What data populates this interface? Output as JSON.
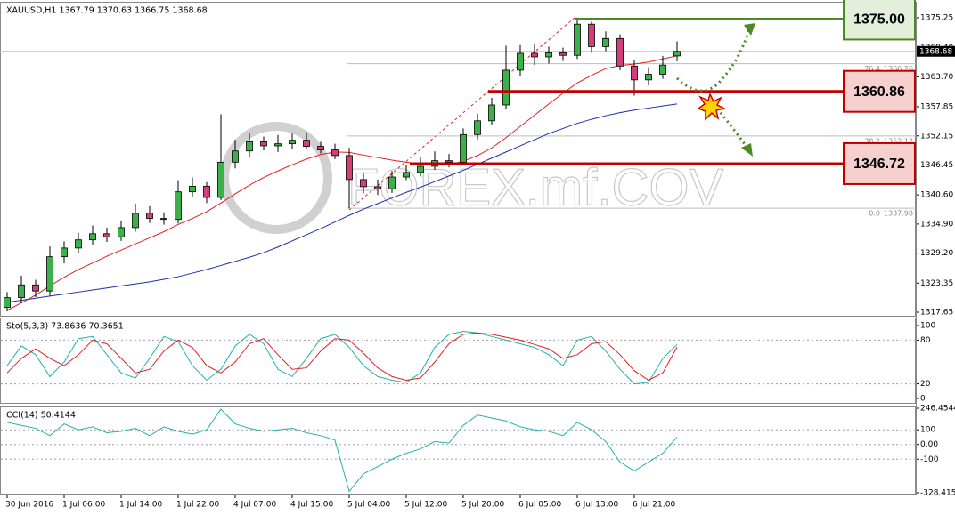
{
  "chart_data": [
    {
      "type": "candlestick",
      "title": "XAUUSD,H1  1367.79 1370.63 1366.75 1368.68",
      "watermark": "FOREX.mf.COV",
      "categories": [
        "30 Jun 2016",
        null,
        null,
        null,
        "1 Jul 06:00",
        null,
        null,
        null,
        "1 Jul 14:00",
        null,
        null,
        null,
        "1 Jul 22:00",
        null,
        null,
        null,
        "4 Jul 07:00",
        null,
        null,
        null,
        "4 Jul 15:00",
        null,
        null,
        null,
        "5 Jul 04:00",
        null,
        null,
        null,
        "5 Jul 12:00",
        null,
        null,
        null,
        "5 Jul 20:00",
        null,
        null,
        null,
        "6 Jul 05:00",
        null,
        null,
        null,
        "6 Jul 13:00",
        null,
        null,
        null,
        "6 Jul 21:00",
        null,
        null,
        null
      ],
      "open": [
        1318.6,
        1320.5,
        1323.0,
        1321.8,
        1328.5,
        1330.2,
        1331.8,
        1333.0,
        1332.4,
        1334.2,
        1337.0,
        1336.0,
        1335.8,
        1341.2,
        1342.3,
        1340.1,
        1347.0,
        1349.2,
        1351.0,
        1350.2,
        1350.6,
        1351.3,
        1350.1,
        1349.4,
        1348.3,
        1343.6,
        1342.2,
        1341.8,
        1344.1,
        1345.0,
        1346.2,
        1347.3,
        1347.0,
        1352.4,
        1355.1,
        1358.2,
        1365.0,
        1368.3,
        1367.6,
        1368.4,
        1367.9,
        1374.0,
        1369.6,
        1371.2,
        1365.8,
        1363.1,
        1364.2,
        1367.79
      ],
      "high": [
        1321.6,
        1324.8,
        1324.0,
        1330.5,
        1331.5,
        1333.2,
        1334.6,
        1334.2,
        1335.6,
        1338.9,
        1338.4,
        1337.2,
        1343.5,
        1344.0,
        1343.1,
        1356.4,
        1351.4,
        1352.8,
        1352.0,
        1352.3,
        1352.6,
        1352.9,
        1351.0,
        1350.6,
        1349.8,
        1345.0,
        1343.6,
        1345.3,
        1346.5,
        1348.0,
        1349.1,
        1348.6,
        1353.6,
        1356.5,
        1359.6,
        1369.8,
        1369.9,
        1370.2,
        1369.6,
        1369.4,
        1375.3,
        1374.5,
        1372.6,
        1372.0,
        1366.9,
        1365.6,
        1367.8,
        1370.63
      ],
      "low": [
        1317.8,
        1319.4,
        1320.6,
        1320.9,
        1327.2,
        1329.3,
        1330.8,
        1331.4,
        1331.6,
        1333.4,
        1335.1,
        1334.8,
        1335.0,
        1340.3,
        1339.0,
        1339.6,
        1345.8,
        1348.1,
        1349.3,
        1349.0,
        1349.6,
        1349.5,
        1348.7,
        1347.6,
        1338.0,
        1340.9,
        1340.6,
        1341.0,
        1343.5,
        1344.2,
        1345.5,
        1346.0,
        1346.5,
        1351.5,
        1354.2,
        1357.3,
        1363.8,
        1366.0,
        1366.3,
        1366.8,
        1367.2,
        1368.4,
        1368.7,
        1365.0,
        1360.0,
        1362.0,
        1363.3,
        1366.75
      ],
      "close": [
        1320.5,
        1323.0,
        1321.8,
        1328.5,
        1330.2,
        1331.8,
        1333.0,
        1332.4,
        1334.2,
        1337.0,
        1336.0,
        1335.8,
        1341.2,
        1342.3,
        1340.1,
        1347.0,
        1349.2,
        1351.0,
        1350.2,
        1350.6,
        1351.3,
        1350.1,
        1349.4,
        1348.3,
        1343.6,
        1342.2,
        1341.8,
        1344.1,
        1345.0,
        1346.2,
        1347.3,
        1347.0,
        1352.4,
        1355.1,
        1358.2,
        1365.0,
        1368.3,
        1367.6,
        1368.4,
        1367.9,
        1374.0,
        1369.6,
        1371.2,
        1365.8,
        1363.1,
        1364.2,
        1366.0,
        1368.68
      ],
      "up_color": "#3cb04a",
      "down_color": "#d43f7a",
      "series": [
        {
          "color": "#e02020",
          "values": [
            1318.0,
            1319.5,
            1321.0,
            1322.8,
            1324.5,
            1326.0,
            1327.3,
            1328.6,
            1329.8,
            1331.0,
            1332.2,
            1333.4,
            1334.8,
            1336.0,
            1337.3,
            1339.0,
            1340.8,
            1342.5,
            1344.0,
            1345.3,
            1346.5,
            1347.6,
            1348.5,
            1349.0,
            1348.9,
            1348.4,
            1347.9,
            1347.4,
            1347.0,
            1346.7,
            1346.5,
            1346.5,
            1347.2,
            1348.3,
            1349.8,
            1351.8,
            1354.0,
            1356.2,
            1358.4,
            1360.5,
            1362.5,
            1364.0,
            1365.3,
            1365.9,
            1366.2,
            1366.6,
            1367.2,
            1367.8
          ]
        },
        {
          "color": "#1c2fa8",
          "values": [
            1319.6,
            1320.0,
            1320.4,
            1320.8,
            1321.2,
            1321.6,
            1322.0,
            1322.4,
            1322.8,
            1323.2,
            1323.6,
            1324.1,
            1324.6,
            1325.3,
            1326.0,
            1326.8,
            1327.6,
            1328.4,
            1329.3,
            1330.4,
            1331.6,
            1332.8,
            1334.0,
            1335.3,
            1336.6,
            1337.8,
            1338.9,
            1340.0,
            1341.1,
            1342.1,
            1343.2,
            1344.3,
            1345.4,
            1346.6,
            1347.8,
            1349.0,
            1350.2,
            1351.4,
            1352.6,
            1353.6,
            1354.6,
            1355.4,
            1356.1,
            1356.7,
            1357.2,
            1357.6,
            1358.0,
            1358.4
          ]
        }
      ],
      "ylim": [
        1317.13,
        1377.34
      ],
      "yticks": [
        1375.25,
        {
          "value": 1369.4,
          "label": "1369.40"
        },
        {
          "value": 1363.7,
          "label": "1363.70"
        },
        1357.85,
        1352.15,
        1346.45,
        {
          "value": 1340.6,
          "label": "1340.60"
        },
        {
          "value": 1334.9,
          "label": "1334.90"
        },
        {
          "value": 1329.2,
          "label": "1329.20"
        },
        1323.35,
        1317.65
      ],
      "last_price": 1368.68,
      "fib_levels": [
        {
          "ratio": 76.4,
          "price": 1366.26
        },
        {
          "ratio": 38.2,
          "price": 1352.12
        },
        {
          "ratio": {
            "value": 0,
            "label": "0.0"
          },
          "price": 1337.98
        }
      ],
      "levels": [
        {
          "value": 1375,
          "label": "1375.00",
          "color": "#4e8a21",
          "fill": "#e2efda"
        },
        {
          "value": 1360.86,
          "color": "#c00000",
          "fill": "#f6cfcf"
        },
        {
          "value": 1346.72,
          "color": "#c00000",
          "fill": "#f6cfcf"
        }
      ]
    },
    {
      "type": "line",
      "title": "Sto(5,3,3) 73.8636 70.3651",
      "series": [
        {
          "color": "#20b2aa",
          "values": [
            45,
            72,
            60,
            30,
            50,
            82,
            85,
            60,
            35,
            28,
            55,
            85,
            78,
            45,
            25,
            40,
            72,
            88,
            75,
            40,
            30,
            55,
            82,
            88,
            70,
            45,
            30,
            25,
            22,
            35,
            70,
            88,
            92,
            90,
            85,
            80,
            75,
            70,
            60,
            45,
            80,
            85,
            65,
            40,
            20,
            22,
            55,
            73.8636
          ]
        },
        {
          "color": "#e02020",
          "values": [
            35,
            55,
            68,
            55,
            45,
            60,
            80,
            75,
            55,
            35,
            40,
            65,
            80,
            70,
            45,
            35,
            50,
            75,
            82,
            60,
            40,
            42,
            65,
            82,
            80,
            62,
            42,
            30,
            25,
            28,
            50,
            75,
            88,
            90,
            88,
            84,
            80,
            74,
            68,
            55,
            60,
            75,
            78,
            60,
            38,
            25,
            35,
            70.3651
          ]
        }
      ],
      "ylim": [
        0,
        100
      ],
      "yticks": [
        100,
        80,
        20,
        0
      ],
      "levels": [
        80,
        20
      ]
    },
    {
      "type": "line",
      "title": "CCI(14) 50.4144",
      "series": [
        {
          "color": "#20b2aa",
          "values": [
            150,
            130,
            110,
            60,
            140,
            100,
            120,
            80,
            90,
            110,
            60,
            120,
            90,
            70,
            100,
            240,
            140,
            110,
            90,
            100,
            110,
            80,
            60,
            30,
            -320,
            -200,
            -150,
            -100,
            -60,
            -30,
            20,
            10,
            130,
            200,
            180,
            160,
            120,
            100,
            90,
            60,
            150,
            100,
            20,
            -120,
            -180,
            -120,
            -60,
            50.4144
          ]
        }
      ],
      "ylim": [
        -328.4153,
        246.4544
      ],
      "yticks": [
        246.4544,
        100,
        {
          "value": 0,
          "label": "0.00"
        },
        -100,
        -328.4153
      ],
      "levels": [
        100,
        0,
        -100
      ]
    }
  ]
}
